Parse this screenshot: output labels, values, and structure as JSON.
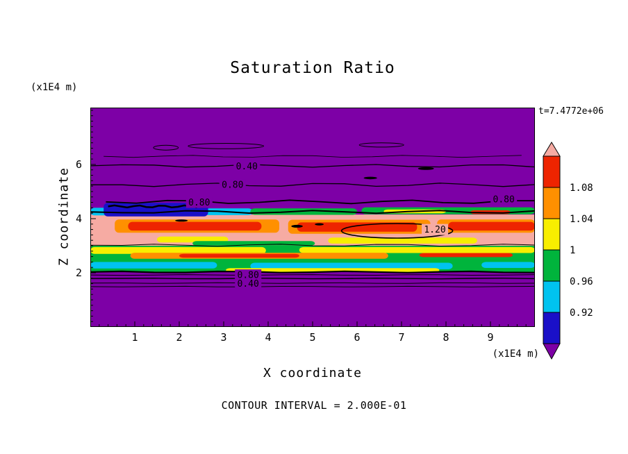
{
  "chart_data": {
    "type": "filled_contour",
    "title": "Saturation Ratio",
    "xlabel": "X coordinate",
    "ylabel": "Z coordinate",
    "x_units": "(x1E4 m)",
    "y_units": "(x1E4 m)",
    "timestamp": "t=7.4772e+06",
    "contour_interval_text": "CONTOUR INTERVAL = 2.000E-01",
    "contour_interval": 0.2,
    "x_range": [
      0,
      10
    ],
    "z_range": [
      0,
      8.1
    ],
    "x_ticks": [
      1,
      2,
      3,
      4,
      5,
      6,
      7,
      8,
      9
    ],
    "y_ticks": [
      2,
      4,
      6
    ],
    "x_minor_step": 0.2,
    "z_minor_step": 0.2,
    "palette": {
      "purple": "#7d00a6",
      "dark_blue": "#1a10c8",
      "cyan": "#00c3f0",
      "green": "#00b43c",
      "yellow": "#f8ee00",
      "orange": "#ff9000",
      "red": "#ee2400",
      "pink": "#f6aba3"
    },
    "colorbar": {
      "cap_top": "pink",
      "cap_bottom": "purple",
      "bands_top_to_bottom": [
        "red",
        "orange",
        "yellow",
        "green",
        "cyan",
        "dark_blue"
      ],
      "tick_labels": [
        "1.08",
        "1.04",
        "1",
        "0.96",
        "0.92"
      ]
    },
    "contour_labels": [
      {
        "text": "0.40",
        "x": 3.52,
        "z": 5.93,
        "bg": "purple"
      },
      {
        "text": "0.80",
        "x": 3.2,
        "z": 5.25,
        "bg": "purple"
      },
      {
        "text": "0.80",
        "x": 2.45,
        "z": 4.6,
        "bg": "purple"
      },
      {
        "text": "0.80",
        "x": 9.3,
        "z": 4.72,
        "bg": "purple"
      },
      {
        "text": "1.20",
        "x": 7.75,
        "z": 3.6,
        "bg": "pink"
      },
      {
        "text": "0.80",
        "x": 3.55,
        "z": 1.92,
        "bg": "purple"
      },
      {
        "text": "0.40",
        "x": 3.55,
        "z": 1.6,
        "bg": "purple"
      }
    ],
    "field": {
      "fills": [
        {
          "x": [
            0,
            10
          ],
          "z": [
            0,
            8.1
          ],
          "c": "purple",
          "r": 0
        },
        {
          "x": [
            0,
            10
          ],
          "z": [
            3.0,
            4.15
          ],
          "c": "pink",
          "r": 0
        },
        {
          "x": [
            0,
            10
          ],
          "z": [
            2.03,
            3.0
          ],
          "c": "green",
          "r": 0
        },
        {
          "x": [
            2.55,
            3.65
          ],
          "z": [
            4.13,
            4.38
          ],
          "c": "cyan"
        },
        {
          "x": [
            3.6,
            6.0
          ],
          "z": [
            4.14,
            4.38
          ],
          "c": "green"
        },
        {
          "x": [
            6.1,
            10
          ],
          "z": [
            4.16,
            4.42
          ],
          "c": "green"
        },
        {
          "x": [
            6.6,
            8.0
          ],
          "z": [
            4.2,
            4.34
          ],
          "c": "yellow"
        },
        {
          "x": [
            8.55,
            9.45
          ],
          "z": [
            4.17,
            4.31
          ],
          "c": "red"
        },
        {
          "x": [
            0,
            0.5
          ],
          "z": [
            4.12,
            4.4
          ],
          "c": "cyan"
        },
        {
          "x": [
            0.3,
            2.65
          ],
          "z": [
            4.08,
            4.58
          ],
          "c": "dark_blue"
        },
        {
          "x": [
            0.55,
            4.25
          ],
          "z": [
            3.48,
            3.97
          ],
          "c": "orange"
        },
        {
          "x": [
            0.85,
            3.85
          ],
          "z": [
            3.56,
            3.88
          ],
          "c": "red"
        },
        {
          "x": [
            4.45,
            7.65
          ],
          "z": [
            3.44,
            3.96
          ],
          "c": "orange"
        },
        {
          "x": [
            4.65,
            7.35
          ],
          "z": [
            3.52,
            3.86
          ],
          "c": "red"
        },
        {
          "x": [
            7.8,
            10
          ],
          "z": [
            3.48,
            3.97
          ],
          "c": "orange"
        },
        {
          "x": [
            8.05,
            10
          ],
          "z": [
            3.56,
            3.88
          ],
          "c": "red"
        },
        {
          "x": [
            1.5,
            3.1
          ],
          "z": [
            3.12,
            3.34
          ],
          "c": "yellow"
        },
        {
          "x": [
            5.35,
            8.7
          ],
          "z": [
            3.08,
            3.3
          ],
          "c": "yellow"
        },
        {
          "x": [
            2.3,
            5.05
          ],
          "z": [
            3.0,
            3.17
          ],
          "c": "green"
        },
        {
          "x": [
            0,
            3.95
          ],
          "z": [
            2.7,
            2.95
          ],
          "c": "yellow"
        },
        {
          "x": [
            4.7,
            10
          ],
          "z": [
            2.73,
            2.95
          ],
          "c": "yellow"
        },
        {
          "x": [
            0.9,
            6.7
          ],
          "z": [
            2.52,
            2.74
          ],
          "c": "orange"
        },
        {
          "x": [
            2.0,
            4.7
          ],
          "z": [
            2.56,
            2.7
          ],
          "c": "red"
        },
        {
          "x": [
            7.4,
            9.5
          ],
          "z": [
            2.58,
            2.73
          ],
          "c": "red"
        },
        {
          "x": [
            0,
            2.85
          ],
          "z": [
            2.16,
            2.4
          ],
          "c": "cyan"
        },
        {
          "x": [
            3.6,
            8.15
          ],
          "z": [
            2.13,
            2.37
          ],
          "c": "cyan"
        },
        {
          "x": [
            8.8,
            10
          ],
          "z": [
            2.18,
            2.4
          ],
          "c": "cyan"
        },
        {
          "x": [
            3.05,
            7.85
          ],
          "z": [
            2.03,
            2.17
          ],
          "c": "yellow"
        }
      ],
      "lines": [
        {
          "z": 6.3,
          "x": [
            0.3,
            9.7
          ],
          "w": 0.8,
          "a": 1.5
        },
        {
          "z": 5.95,
          "x": [
            0,
            10
          ],
          "w": 1.3,
          "a": 2
        },
        {
          "z": 5.25,
          "x": [
            0,
            10
          ],
          "w": 1.3,
          "a": 2.5
        },
        {
          "z": 4.62,
          "x": [
            0.35,
            10
          ],
          "w": 1.8,
          "a": 2.5
        },
        {
          "z": 4.45,
          "x": [
            0.4,
            2.4
          ],
          "w": 2.5,
          "a": 1.5
        },
        {
          "z": 4.25,
          "x": [
            0,
            10
          ],
          "w": 2,
          "a": 2
        },
        {
          "z": 3.02,
          "x": [
            0,
            10
          ],
          "w": 1,
          "a": 1.5
        },
        {
          "z": 2.03,
          "x": [
            0,
            10
          ],
          "w": 2.2,
          "a": 1
        },
        {
          "z": 1.92,
          "x": [
            0,
            10
          ],
          "w": 1,
          "a": 0.5
        },
        {
          "z": 1.79,
          "x": [
            0,
            10
          ],
          "w": 1.4,
          "a": 0.5
        },
        {
          "z": 1.62,
          "x": [
            0,
            10
          ],
          "w": 1,
          "a": 0.5
        },
        {
          "z": 1.49,
          "x": [
            0,
            10
          ],
          "w": 1,
          "a": 0.5
        }
      ],
      "loops": [
        {
          "cx": 1.7,
          "cz": 6.62,
          "rx": 0.28,
          "rz": 0.09,
          "w": 1
        },
        {
          "cx": 3.05,
          "cz": 6.68,
          "rx": 0.85,
          "rz": 0.1,
          "w": 1
        },
        {
          "cx": 6.55,
          "cz": 6.72,
          "rx": 0.5,
          "rz": 0.08,
          "w": 1
        },
        {
          "cx": 6.9,
          "cz": 3.55,
          "rx": 1.25,
          "rz": 0.27,
          "w": 1.6
        }
      ],
      "dashes": [
        {
          "cx": 4.65,
          "cz": 3.72,
          "rx": 0.13,
          "rz": 0.05
        },
        {
          "cx": 5.15,
          "cz": 3.79,
          "rx": 0.1,
          "rz": 0.04
        },
        {
          "cx": 2.05,
          "cz": 3.93,
          "rx": 0.14,
          "rz": 0.04
        },
        {
          "cx": 7.55,
          "cz": 5.85,
          "rx": 0.18,
          "rz": 0.05
        },
        {
          "cx": 6.3,
          "cz": 5.5,
          "rx": 0.15,
          "rz": 0.045
        }
      ]
    }
  }
}
